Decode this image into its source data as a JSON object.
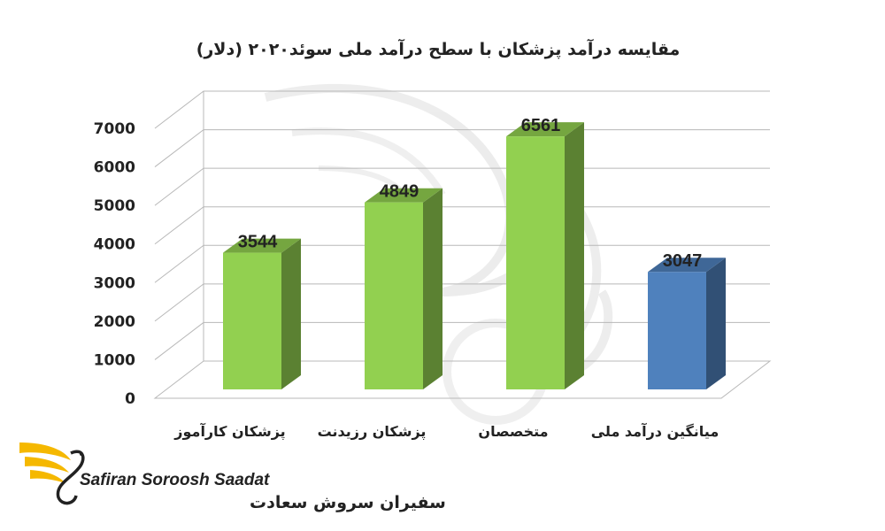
{
  "chart_data": {
    "type": "bar",
    "title": "مقایسه درآمد  پزشکان با سطح درآمد ملی سوئد۲۰۲۰ (دلار)",
    "categories": [
      "پزشکان کارآموز",
      "پزشکان رزیدنت",
      "متخصصان",
      "میانگین درآمد ملی"
    ],
    "values": [
      3544,
      4849,
      6561,
      3047
    ],
    "value_labels": [
      "3544",
      "4849",
      "6561",
      "3047"
    ],
    "bar_colors": [
      "#92d050",
      "#92d050",
      "#92d050",
      "#4f81bd"
    ],
    "ylim": [
      0,
      7000
    ],
    "yticks": [
      "0",
      "1000",
      "2000",
      "3000",
      "4000",
      "5000",
      "6000",
      "7000"
    ],
    "xlabel": "",
    "ylabel": "",
    "grid": true,
    "style": "3d-column"
  },
  "branding": {
    "logo_latin": "Safiran Soroosh Saadat",
    "logo_persian": "سفیران سروش سعادت",
    "accent": "#f5b800"
  }
}
